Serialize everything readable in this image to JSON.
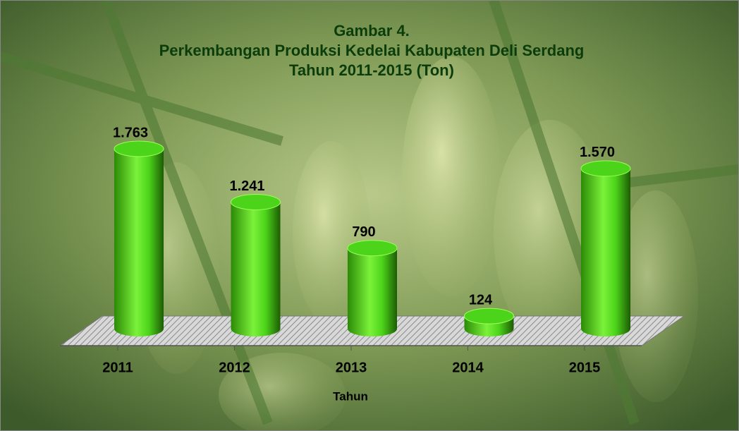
{
  "chart_data": {
    "type": "bar",
    "title": [
      "Gambar 4.",
      "Perkembangan Produksi Kedelai Kabupaten Deli Serdang",
      "Tahun 2011-2015 (Ton)"
    ],
    "xlabel": "Tahun",
    "categories": [
      "2011",
      "2012",
      "2013",
      "2014",
      "2015"
    ],
    "values": [
      1763,
      1241,
      790,
      124,
      1570
    ],
    "value_labels": [
      "1.763",
      "1.241",
      "790",
      "124",
      "1.570"
    ],
    "color": "#4cd41a"
  }
}
